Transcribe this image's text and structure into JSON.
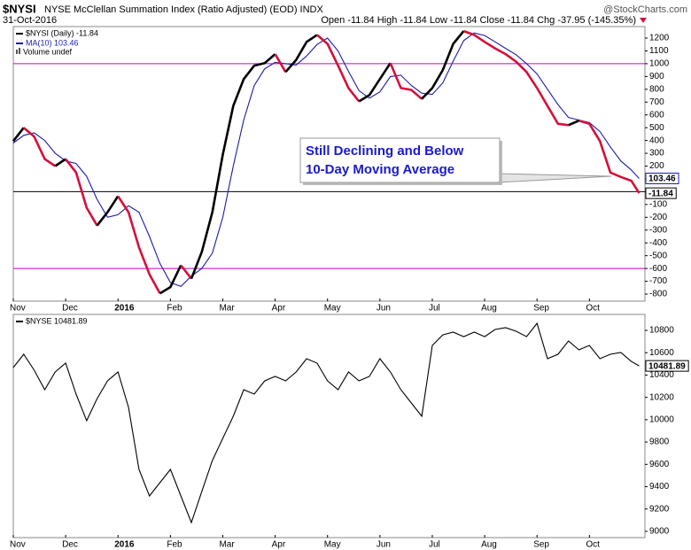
{
  "header": {
    "symbol": "$NYSI",
    "title": "NYSE McClellan Summation Index (Ratio Adjusted) (EOD) INDX",
    "watermark": "@StockCharts.com",
    "date": "31-Oct-2016",
    "quote": "Open -11.84 High -11.84 Low -11.84 Close -11.84 Chg -37.95 (-145.35%)"
  },
  "chart_data": [
    {
      "type": "line",
      "legend_note": "Volume undef",
      "annotation": [
        "Still Declining and Below",
        "10-Day Moving Average"
      ],
      "x": [
        0,
        0.2,
        0.4,
        0.6,
        0.8,
        1,
        1.2,
        1.4,
        1.6,
        1.8,
        2,
        2.2,
        2.4,
        2.6,
        2.8,
        3,
        3.2,
        3.4,
        3.6,
        3.8,
        4,
        4.2,
        4.4,
        4.6,
        4.8,
        5,
        5.2,
        5.4,
        5.6,
        5.8,
        6,
        6.2,
        6.4,
        6.6,
        6.8,
        7,
        7.2,
        7.4,
        7.6,
        7.8,
        8,
        8.2,
        8.4,
        8.6,
        8.8,
        9,
        9.2,
        9.4,
        9.6,
        9.8,
        10,
        10.2,
        10.4,
        10.6,
        10.8,
        11,
        11.2,
        11.4,
        11.6,
        11.8,
        11.95
      ],
      "series": [
        {
          "name": "$NYSI (Daily) -11.84",
          "up_color": "#000000",
          "down_color": "#d4103c",
          "values": [
            395,
            500,
            430,
            255,
            200,
            255,
            150,
            -125,
            -265,
            -160,
            -35,
            -160,
            -435,
            -645,
            -795,
            -745,
            -575,
            -680,
            -470,
            -160,
            290,
            670,
            880,
            985,
            1005,
            1075,
            935,
            1030,
            1170,
            1225,
            1155,
            985,
            810,
            705,
            755,
            880,
            1005,
            810,
            795,
            725,
            810,
            950,
            1155,
            1255,
            1225,
            1170,
            1120,
            1075,
            1015,
            935,
            810,
            670,
            530,
            520,
            555,
            530,
            395,
            150,
            115,
            85,
            -11.84
          ]
        },
        {
          "name": "MA(10) 103.46",
          "color": "#1c1ca8",
          "values": [
            380,
            440,
            460,
            400,
            300,
            240,
            220,
            120,
            -60,
            -200,
            -180,
            -110,
            -160,
            -350,
            -560,
            -710,
            -740,
            -660,
            -600,
            -480,
            -200,
            200,
            560,
            830,
            960,
            1010,
            1000,
            990,
            1060,
            1150,
            1200,
            1100,
            940,
            790,
            730,
            780,
            900,
            910,
            830,
            770,
            760,
            850,
            1020,
            1180,
            1240,
            1220,
            1170,
            1120,
            1070,
            1000,
            920,
            800,
            680,
            580,
            560,
            540,
            470,
            350,
            240,
            170,
            103.46
          ]
        }
      ],
      "reference_lines": [
        {
          "value": 1000,
          "color": "#cc00cc"
        },
        {
          "value": -600,
          "color": "#cc00cc"
        },
        {
          "value": 0,
          "color": "#000000"
        }
      ],
      "xlim": [
        0,
        12.06
      ],
      "xticks": [
        {
          "value": 0,
          "label": "Nov"
        },
        {
          "value": 1,
          "label": "Dec"
        },
        {
          "value": 2,
          "label": "2016"
        },
        {
          "value": 3,
          "label": "Feb"
        },
        {
          "value": 4,
          "label": "Mar"
        },
        {
          "value": 5,
          "label": "Apr"
        },
        {
          "value": 6,
          "label": "May"
        },
        {
          "value": 7,
          "label": "Jun"
        },
        {
          "value": 8,
          "label": "Jul"
        },
        {
          "value": 9,
          "label": "Aug"
        },
        {
          "value": 10,
          "label": "Sep"
        },
        {
          "value": 11,
          "label": "Oct"
        }
      ],
      "ylim": [
        -855,
        1290
      ],
      "yticks": [
        -800,
        -700,
        -600,
        -500,
        -400,
        -300,
        -200,
        -100,
        0,
        100,
        200,
        300,
        400,
        500,
        600,
        700,
        800,
        900,
        1000,
        1100,
        1200
      ]
    },
    {
      "type": "line",
      "x": [
        0,
        0.2,
        0.4,
        0.6,
        0.8,
        1,
        1.2,
        1.4,
        1.6,
        1.8,
        2,
        2.2,
        2.4,
        2.6,
        2.8,
        3,
        3.2,
        3.4,
        3.6,
        3.8,
        4,
        4.2,
        4.4,
        4.6,
        4.8,
        5,
        5.2,
        5.4,
        5.6,
        5.8,
        6,
        6.2,
        6.4,
        6.6,
        6.8,
        7,
        7.2,
        7.4,
        7.6,
        7.8,
        8,
        8.2,
        8.4,
        8.6,
        8.8,
        9,
        9.2,
        9.4,
        9.6,
        9.8,
        10,
        10.2,
        10.4,
        10.6,
        10.8,
        11,
        11.2,
        11.4,
        11.6,
        11.8,
        11.95
      ],
      "series": [
        {
          "name": "$NYSE 10481.89",
          "color": "#000000",
          "values": [
            10467,
            10586,
            10443,
            10269,
            10427,
            10507,
            10229,
            9991,
            10189,
            10348,
            10427,
            10110,
            9555,
            9317,
            9436,
            9555,
            9317,
            9079,
            9357,
            9634,
            9833,
            10031,
            10269,
            10229,
            10348,
            10388,
            10348,
            10427,
            10546,
            10507,
            10348,
            10269,
            10427,
            10348,
            10388,
            10546,
            10427,
            10269,
            10150,
            10031,
            10665,
            10760,
            10784,
            10744,
            10784,
            10744,
            10808,
            10824,
            10792,
            10744,
            10863,
            10546,
            10586,
            10705,
            10626,
            10665,
            10546,
            10586,
            10602,
            10522,
            10481.89
          ]
        }
      ],
      "xlim": [
        0,
        12.06
      ],
      "xticks": [
        {
          "value": 0,
          "label": "Nov"
        },
        {
          "value": 1,
          "label": "Dec"
        },
        {
          "value": 2,
          "label": "2016"
        },
        {
          "value": 3,
          "label": "Feb"
        },
        {
          "value": 4,
          "label": "Mar"
        },
        {
          "value": 5,
          "label": "Apr"
        },
        {
          "value": 6,
          "label": "May"
        },
        {
          "value": 7,
          "label": "Jun"
        },
        {
          "value": 8,
          "label": "Jul"
        },
        {
          "value": 9,
          "label": "Aug"
        },
        {
          "value": 10,
          "label": "Sep"
        },
        {
          "value": 11,
          "label": "Oct"
        }
      ],
      "ylim": [
        8944,
        10943
      ],
      "yticks": [
        9000,
        9200,
        9400,
        9600,
        9800,
        10000,
        10200,
        10400,
        10600,
        10800
      ]
    }
  ]
}
